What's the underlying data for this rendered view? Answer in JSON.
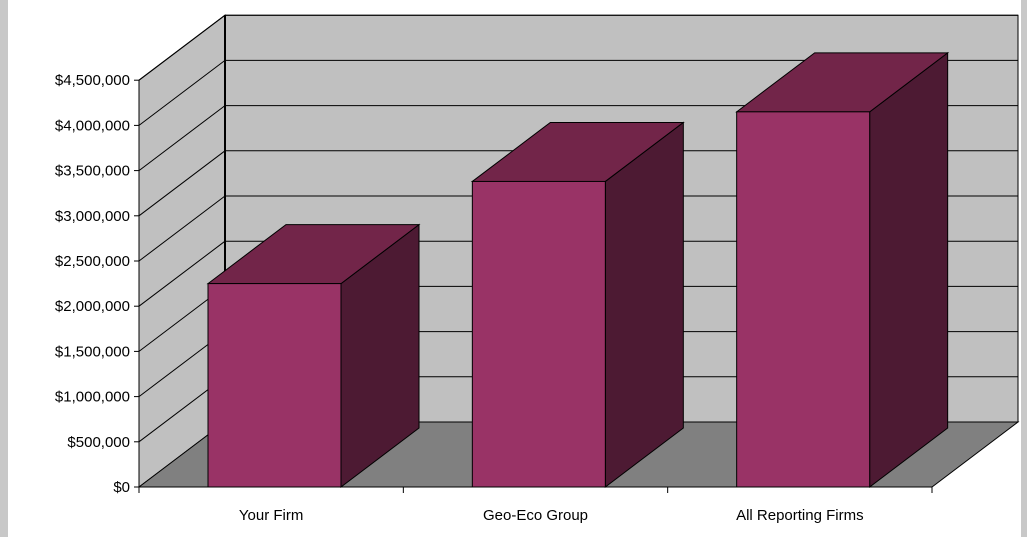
{
  "chart_data": {
    "type": "bar",
    "variant": "3d-column",
    "categories": [
      "Your Firm",
      "Geo-Eco Group",
      "All Reporting Firms"
    ],
    "values": [
      2250000,
      3380000,
      4150000
    ],
    "title": "",
    "xlabel": "",
    "ylabel": "",
    "ylim": [
      0,
      4500000
    ],
    "yticks": [
      0,
      500000,
      1000000,
      1500000,
      2000000,
      2500000,
      3000000,
      3500000,
      4000000,
      4500000
    ],
    "ytick_labels": [
      "$0",
      "$500,000",
      "$1,000,000",
      "$1,500,000",
      "$2,000,000",
      "$2,500,000",
      "$3,000,000",
      "$3,500,000",
      "$4,000,000",
      "$4,500,000"
    ],
    "grid": true,
    "legend": "none",
    "colors": {
      "bar_front": "#993366",
      "bar_top": "#722549",
      "bar_side": "#4d1a33",
      "back_wall": "#c0c0c0",
      "side_wall": "#c0c0c0",
      "floor": "#808080",
      "page_background": "#c8c8c8",
      "frame": "#ffffff"
    }
  }
}
